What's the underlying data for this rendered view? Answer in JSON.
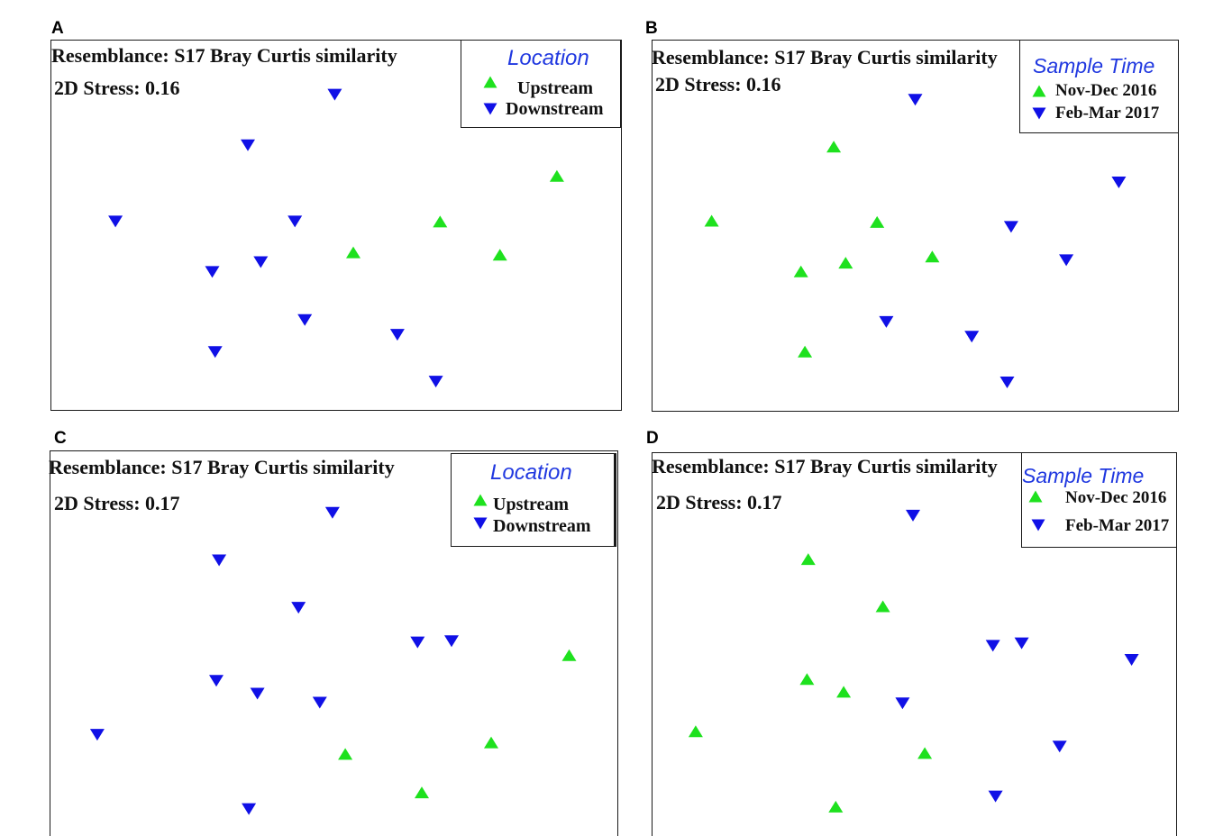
{
  "chart_data": [
    {
      "panel_label": "A",
      "type": "scatter",
      "title": "Resemblance: S17 Bray Curtis similarity",
      "annotation": "2D Stress: 0.16",
      "xlim": [
        -2,
        2
      ],
      "ylim": [
        -1.5,
        1.5
      ],
      "grid": false,
      "legend": {
        "title": "Location",
        "placement": "top-right",
        "title_color": "#2038e0"
      },
      "series": [
        {
          "name": "Upstream",
          "marker": "triangle-up",
          "color": "#1ee11e",
          "points": [
            [
              1.55,
              0.4
            ],
            [
              0.73,
              0.03
            ],
            [
              0.12,
              -0.22
            ],
            [
              1.15,
              -0.24
            ]
          ]
        },
        {
          "name": "Downstream",
          "marker": "triangle-down",
          "color": "#1010e6",
          "points": [
            [
              -0.01,
              1.06
            ],
            [
              -0.62,
              0.65
            ],
            [
              -1.55,
              0.03
            ],
            [
              -0.29,
              0.03
            ],
            [
              -0.87,
              -0.38
            ],
            [
              -0.53,
              -0.3
            ],
            [
              -0.22,
              -0.77
            ],
            [
              0.43,
              -0.89
            ],
            [
              -0.85,
              -1.03
            ],
            [
              0.7,
              -1.27
            ]
          ]
        }
      ]
    },
    {
      "panel_label": "B",
      "type": "scatter",
      "title": "Resemblance: S17 Bray Curtis similarity",
      "annotation": "2D Stress: 0.16",
      "xlim": [
        -2,
        2
      ],
      "ylim": [
        -1.5,
        1.5
      ],
      "grid": false,
      "legend": {
        "title": "Sample Time",
        "placement": "top-right",
        "title_color": "#2038e0"
      },
      "series": [
        {
          "name": "Nov-Dec 2016",
          "marker": "triangle-up",
          "color": "#1ee11e",
          "points": [
            [
              -0.62,
              0.64
            ],
            [
              -1.55,
              0.04
            ],
            [
              -0.29,
              0.03
            ],
            [
              -0.53,
              -0.3
            ],
            [
              -0.87,
              -0.37
            ],
            [
              0.13,
              -0.25
            ],
            [
              -0.84,
              -1.02
            ]
          ]
        },
        {
          "name": "Feb-Mar 2017",
          "marker": "triangle-down",
          "color": "#1010e6",
          "points": [
            [
              0.0,
              1.02
            ],
            [
              1.55,
              0.35
            ],
            [
              0.73,
              -0.01
            ],
            [
              1.15,
              -0.28
            ],
            [
              -0.22,
              -0.78
            ],
            [
              0.43,
              -0.9
            ],
            [
              0.7,
              -1.27
            ]
          ]
        }
      ]
    },
    {
      "panel_label": "C",
      "type": "scatter",
      "title": "Resemblance: S17 Bray Curtis similarity",
      "annotation": "2D Stress: 0.17",
      "xlim": [
        -2,
        2
      ],
      "ylim": [
        -1.5,
        1.5
      ],
      "grid": false,
      "legend": {
        "title": "Location",
        "placement": "top-right",
        "title_color": "#2038e0"
      },
      "series": [
        {
          "name": "Upstream",
          "marker": "triangle-up",
          "color": "#1ee11e",
          "points": [
            [
              1.66,
              -0.09
            ],
            [
              0.08,
              -0.86
            ],
            [
              1.11,
              -0.77
            ],
            [
              0.62,
              -1.16
            ]
          ]
        },
        {
          "name": "Downstream",
          "marker": "triangle-down",
          "color": "#1010e6",
          "points": [
            [
              -0.01,
              1.02
            ],
            [
              -0.81,
              0.65
            ],
            [
              -0.25,
              0.28
            ],
            [
              0.59,
              0.01
            ],
            [
              0.83,
              0.02
            ],
            [
              -0.83,
              -0.29
            ],
            [
              -0.54,
              -0.39
            ],
            [
              -0.1,
              -0.46
            ],
            [
              -1.67,
              -0.71
            ],
            [
              -0.6,
              -1.29
            ]
          ]
        }
      ]
    },
    {
      "panel_label": "D",
      "type": "scatter",
      "title": "Resemblance: S17 Bray Curtis similarity",
      "annotation": "2D Stress: 0.17",
      "xlim": [
        -2,
        2
      ],
      "ylim": [
        -1.5,
        1.5
      ],
      "grid": false,
      "legend": {
        "title": "Sample Time",
        "placement": "top-right",
        "title_color": "#2038e0"
      },
      "series": [
        {
          "name": "Nov-Dec 2016",
          "marker": "triangle-up",
          "color": "#1ee11e",
          "points": [
            [
              -0.81,
              0.67
            ],
            [
              -0.24,
              0.3
            ],
            [
              -0.82,
              -0.27
            ],
            [
              -0.54,
              -0.37
            ],
            [
              -1.67,
              -0.68
            ],
            [
              0.08,
              -0.85
            ],
            [
              -0.6,
              -1.27
            ]
          ]
        },
        {
          "name": "Feb-Mar 2017",
          "marker": "triangle-down",
          "color": "#1010e6",
          "points": [
            [
              -0.01,
              1.01
            ],
            [
              0.6,
              -0.01
            ],
            [
              0.82,
              0.01
            ],
            [
              1.66,
              -0.12
            ],
            [
              -0.09,
              -0.46
            ],
            [
              1.11,
              -0.8
            ],
            [
              0.62,
              -1.19
            ]
          ]
        }
      ]
    }
  ]
}
